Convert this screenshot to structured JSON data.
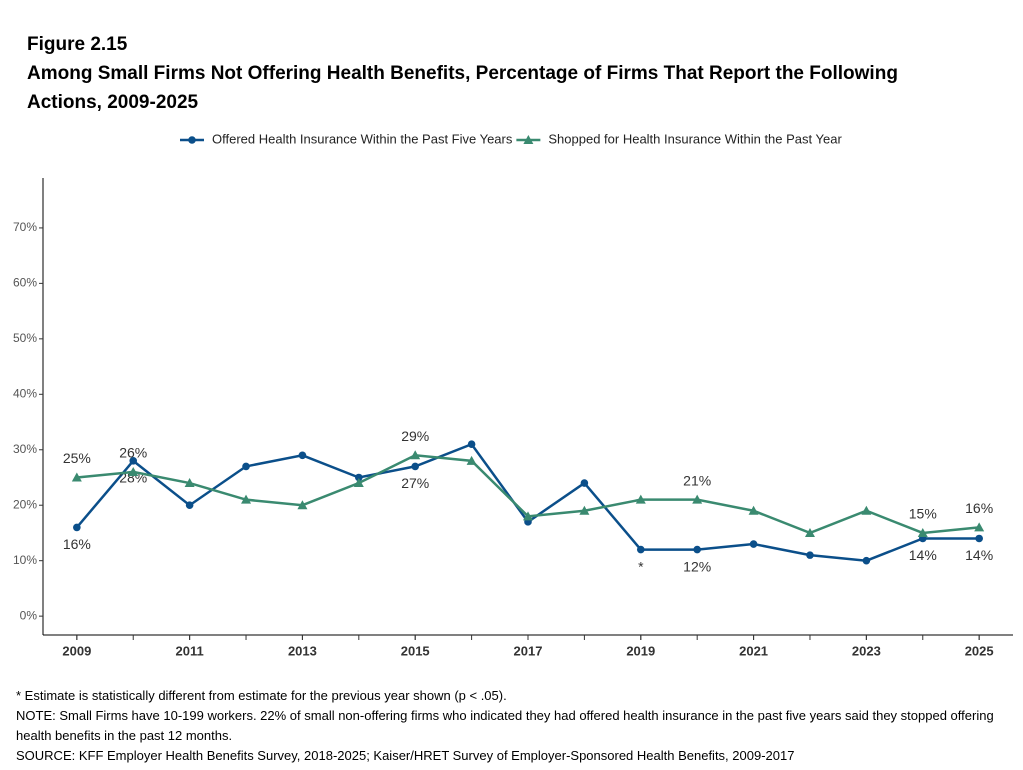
{
  "chart_data": {
    "type": "line",
    "figure_label": "Figure 2.15",
    "title": "Among Small Firms Not Offering Health Benefits, Percentage of Firms That Report the Following Actions, 2009-2025",
    "x": [
      2009,
      2010,
      2011,
      2012,
      2013,
      2014,
      2015,
      2016,
      2017,
      2018,
      2019,
      2020,
      2021,
      2022,
      2023,
      2024,
      2025
    ],
    "series": [
      {
        "name": "Offered Health Insurance Within the Past Five Years",
        "color": "#0b4f8a",
        "marker": "circle",
        "label_position": "below",
        "values": [
          16,
          28,
          20,
          27,
          29,
          25,
          27,
          31,
          17,
          24,
          12,
          12,
          13,
          11,
          10,
          14,
          14
        ],
        "value_labels": [
          "16%",
          "28%",
          null,
          null,
          null,
          null,
          "27%",
          null,
          null,
          null,
          "*",
          "12%",
          null,
          null,
          null,
          "14%",
          "14%"
        ]
      },
      {
        "name": "Shopped for Health Insurance Within the Past Year",
        "color": "#3a8a70",
        "marker": "triangle",
        "label_position": "above",
        "values": [
          25,
          26,
          24,
          21,
          20,
          24,
          29,
          28,
          18,
          19,
          21,
          21,
          19,
          15,
          19,
          15,
          16
        ],
        "value_labels": [
          "25%",
          "26%",
          null,
          null,
          null,
          null,
          "29%",
          null,
          null,
          null,
          null,
          "21%",
          null,
          null,
          null,
          "15%",
          "16%"
        ]
      }
    ],
    "xlim": [
      2008.4,
      2025.6
    ],
    "xticks": [
      2009,
      2011,
      2013,
      2015,
      2017,
      2019,
      2021,
      2023,
      2025
    ],
    "ylim": [
      -3.4,
      79
    ],
    "yticks": [
      {
        "value": 0,
        "label": "0%"
      },
      {
        "value": 10,
        "label": "10%"
      },
      {
        "value": 20,
        "label": "20%"
      },
      {
        "value": 30,
        "label": "30%"
      },
      {
        "value": 40,
        "label": "40%"
      },
      {
        "value": 50,
        "label": "50%"
      },
      {
        "value": 60,
        "label": "60%"
      },
      {
        "value": 70,
        "label": "70%"
      }
    ],
    "grid": false,
    "legend": "top",
    "notes": [
      "* Estimate is statistically different from estimate for the previous year shown (p < .05).",
      "NOTE: Small Firms have 10-199 workers. 22% of small non-offering firms who indicated they had offered health insurance in the past five years said they stopped offering health benefits in the past 12 months.",
      "SOURCE: KFF Employer Health Benefits Survey, 2018-2025; Kaiser/HRET Survey of Employer-Sponsored Health Benefits, 2009-2017"
    ]
  }
}
